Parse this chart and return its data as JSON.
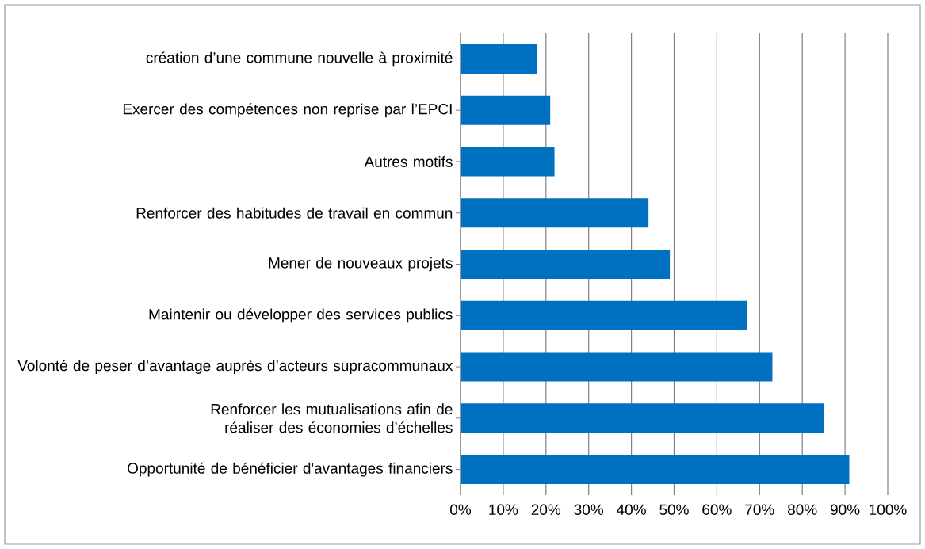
{
  "chart_data": {
    "type": "bar",
    "orientation": "horizontal",
    "categories": [
      "création d’une commune nouvelle à proximité",
      "Exercer des compétences non reprise par l’EPCI",
      "Autres motifs",
      "Renforcer des habitudes de travail en commun",
      "Mener de nouveaux projets",
      "Maintenir ou développer des services publics",
      "Volonté de peser d’avantage auprès d’acteurs supracommunaux",
      "Renforcer les mutualisations afin de réaliser des économies d’échelles",
      "Opportunité de bénéficier d'avantages financiers"
    ],
    "values": [
      18,
      21,
      22,
      44,
      49,
      67,
      73,
      85,
      91
    ],
    "color": "#0070c0",
    "xlim": [
      0,
      100
    ],
    "xticks": [
      {
        "value": 0,
        "label": "0%"
      },
      {
        "value": 10,
        "label": "10%"
      },
      {
        "value": 20,
        "label": "20%"
      },
      {
        "value": 30,
        "label": "30%"
      },
      {
        "value": 40,
        "label": "40%"
      },
      {
        "value": 50,
        "label": "50%"
      },
      {
        "value": 60,
        "label": "60%"
      },
      {
        "value": 70,
        "label": "70%"
      },
      {
        "value": 80,
        "label": "80%"
      },
      {
        "value": 90,
        "label": "90%"
      },
      {
        "value": 100,
        "label": "100%"
      }
    ],
    "grid": "x"
  }
}
